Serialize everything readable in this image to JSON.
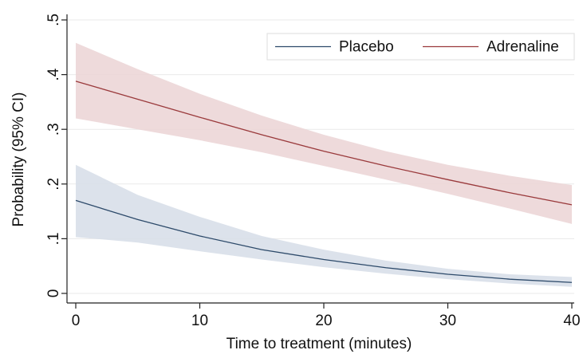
{
  "chart_data": {
    "type": "line",
    "xlabel": "Time to treatment (minutes)",
    "ylabel": "Probability (95% CI)",
    "x": [
      0,
      5,
      10,
      15,
      20,
      25,
      30,
      35,
      40
    ],
    "series": [
      {
        "name": "Placebo",
        "color": "#2d4a6a",
        "band_color": "#d6dde7",
        "values": [
          0.17,
          0.135,
          0.105,
          0.08,
          0.062,
          0.047,
          0.035,
          0.026,
          0.02
        ],
        "lower": [
          0.103,
          0.093,
          0.077,
          0.062,
          0.048,
          0.036,
          0.026,
          0.018,
          0.012
        ],
        "upper": [
          0.235,
          0.18,
          0.14,
          0.105,
          0.08,
          0.06,
          0.045,
          0.035,
          0.03
        ]
      },
      {
        "name": "Adrenaline",
        "color": "#9a3a3c",
        "band_color": "#ebd4d5",
        "values": [
          0.388,
          0.355,
          0.322,
          0.29,
          0.26,
          0.233,
          0.208,
          0.184,
          0.162
        ],
        "lower": [
          0.32,
          0.3,
          0.28,
          0.258,
          0.233,
          0.208,
          0.182,
          0.155,
          0.127
        ],
        "upper": [
          0.458,
          0.41,
          0.365,
          0.325,
          0.29,
          0.26,
          0.235,
          0.215,
          0.198
        ]
      }
    ],
    "xlim": [
      0,
      40
    ],
    "xticks": [
      0,
      10,
      20,
      30,
      40
    ],
    "ylim": [
      0,
      0.5
    ],
    "yticks": [
      0,
      {
        "value": 0.1,
        "label": ".1"
      },
      {
        "value": 0.2,
        "label": ".2"
      },
      {
        "value": 0.3,
        "label": ".3"
      },
      {
        "value": 0.4,
        "label": ".4"
      },
      {
        "value": 0.5,
        "label": ".5"
      }
    ],
    "grid": true,
    "legend": "top-right"
  }
}
